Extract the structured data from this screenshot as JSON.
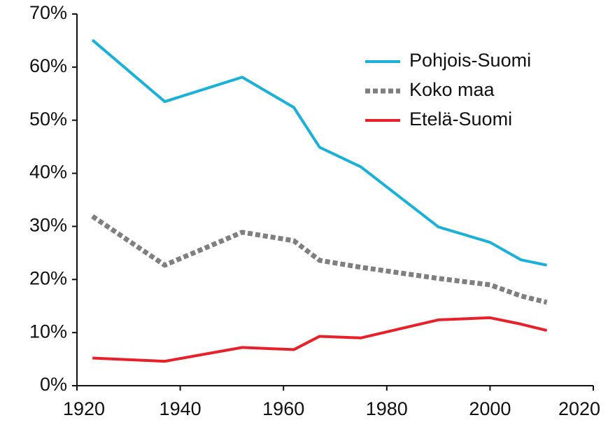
{
  "chart_data": {
    "type": "line",
    "x": [
      1923,
      1937,
      1952,
      1962,
      1967,
      1975,
      1990,
      2000,
      2006,
      2011
    ],
    "series": [
      {
        "name": "Pohjois-Suomi",
        "color": "#1ab0d8",
        "dash": "solid",
        "values": [
          65.1,
          53.5,
          58.1,
          52.4,
          44.9,
          41.2,
          29.9,
          27.0,
          23.7,
          22.7
        ]
      },
      {
        "name": "Koko maa",
        "color": "#7f7f7f",
        "dash": "dotted",
        "values": [
          31.9,
          22.7,
          28.9,
          27.3,
          23.6,
          22.3,
          20.2,
          19.0,
          16.9,
          15.7
        ]
      },
      {
        "name": "Etelä-Suomi",
        "color": "#e8202a",
        "dash": "solid",
        "values": [
          5.2,
          4.6,
          7.2,
          6.8,
          9.3,
          9.0,
          12.4,
          12.8,
          11.6,
          10.4
        ]
      }
    ],
    "xlim": [
      1920,
      2020
    ],
    "xticks": [
      1920,
      1940,
      1960,
      1980,
      2000,
      2020
    ],
    "ylim": [
      0,
      70
    ],
    "yticks": [
      {
        "value": 0,
        "label": "0%"
      },
      {
        "value": 10,
        "label": "10%"
      },
      {
        "value": 20,
        "label": "20%"
      },
      {
        "value": 30,
        "label": "30%"
      },
      {
        "value": 40,
        "label": "40%"
      },
      {
        "value": 50,
        "label": "50%"
      },
      {
        "value": 60,
        "label": "60%"
      },
      {
        "value": 70,
        "label": "70%"
      }
    ],
    "grid": false,
    "legend": "upper right"
  }
}
